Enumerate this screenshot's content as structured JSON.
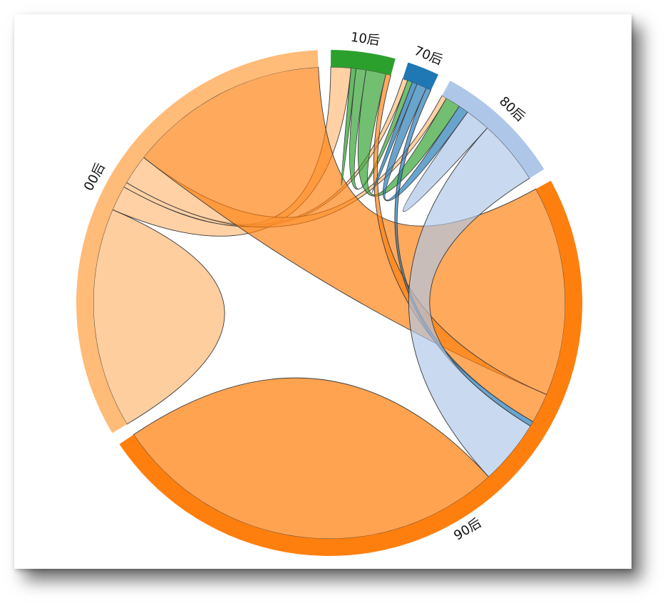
{
  "chart_data": {
    "type": "chord",
    "title": "",
    "groups": [
      {
        "name": "00后",
        "color": "#ffbb78"
      },
      {
        "name": "10后",
        "color": "#2ca02c"
      },
      {
        "name": "70后",
        "color": "#1f77b4"
      },
      {
        "name": "80后",
        "color": "#aec7e8"
      },
      {
        "name": "90后",
        "color": "#ff7f0e"
      }
    ],
    "matrix": [
      [
        44,
        5,
        1,
        6,
        40
      ],
      [
        4,
        1,
        2,
        4,
        1
      ],
      [
        1,
        1,
        1,
        2,
        1
      ],
      [
        1,
        3,
        2,
        5,
        13
      ],
      [
        42,
        6,
        1,
        13,
        80
      ]
    ],
    "padding_degrees": 3
  }
}
